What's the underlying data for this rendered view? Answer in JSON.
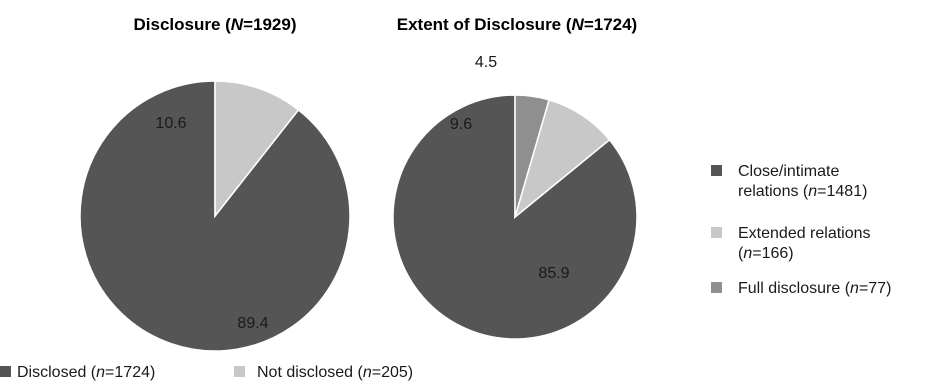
{
  "chart_data": [
    {
      "type": "pie",
      "title_prefix": "Disclosure (",
      "title_italic": "N",
      "title_suffix": "=1929)",
      "slices": [
        {
          "label": "Disclosed (n=1724)",
          "legend_prefix": "Disclosed (",
          "legend_italic": "n",
          "legend_suffix": "=1724)",
          "value": 89.4,
          "value_label": "89.4",
          "color": "#555555"
        },
        {
          "label": "Not disclosed (n=205)",
          "legend_prefix": "Not disclosed (",
          "legend_italic": "n",
          "legend_suffix": "=205)",
          "value": 10.6,
          "value_label": "10.6",
          "color": "#c8c8c8"
        }
      ],
      "legend_position": "bottom"
    },
    {
      "type": "pie",
      "title_prefix": "Extent of Disclosure (",
      "title_italic": "N",
      "title_suffix": "=1724)",
      "slices": [
        {
          "label": "Close/intimate relations (n=1481)",
          "legend_line1": "Close/intimate",
          "legend_prefix": "relations (",
          "legend_italic": "n",
          "legend_suffix": "=1481)",
          "value": 85.9,
          "value_label": "85.9",
          "color": "#555555"
        },
        {
          "label": "Extended relations (n=166)",
          "legend_line1": "Extended relations",
          "legend_prefix": "(",
          "legend_italic": "n",
          "legend_suffix": "=166)",
          "value": 9.6,
          "value_label": "9.6",
          "color": "#c8c8c8"
        },
        {
          "label": "Full disclosure (n=77)",
          "legend_line1": "",
          "legend_prefix": "Full disclosure (",
          "legend_italic": "n",
          "legend_suffix": "=77)",
          "value": 4.5,
          "value_label": "4.5",
          "color": "#8f8f8f"
        }
      ],
      "legend_position": "right"
    }
  ]
}
